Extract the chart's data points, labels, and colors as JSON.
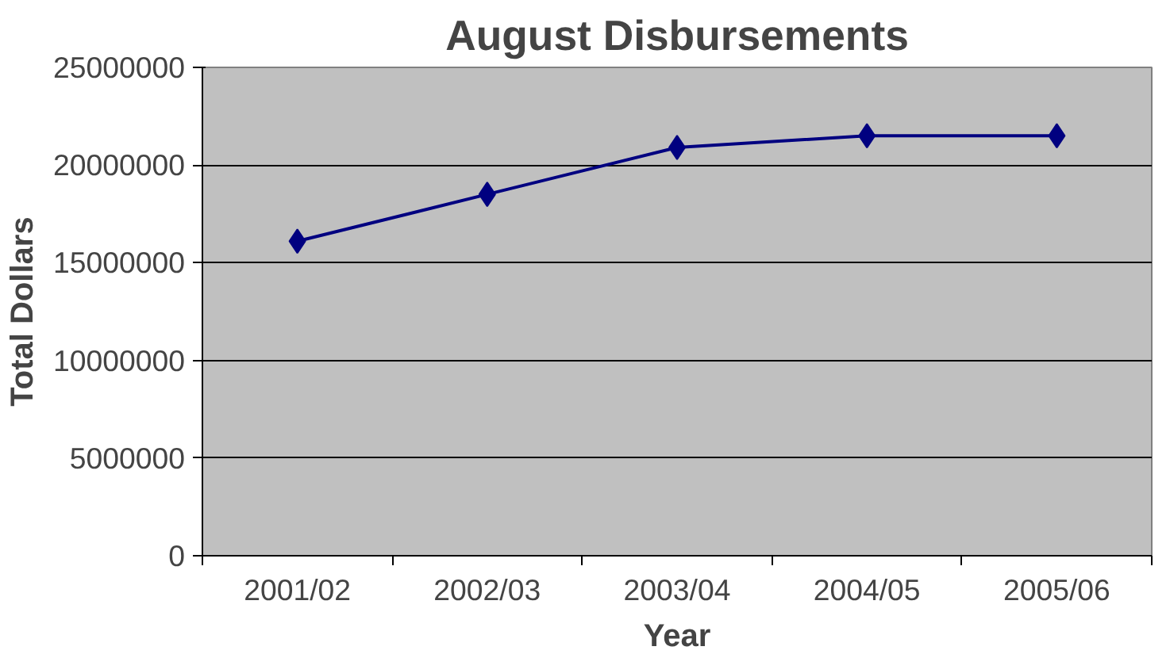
{
  "chart_data": {
    "type": "line",
    "title": "August Disbursements",
    "xlabel": "Year",
    "ylabel": "Total Dollars",
    "categories": [
      "2001/02",
      "2002/03",
      "2003/04",
      "2004/05",
      "2005/06"
    ],
    "series": [
      {
        "color": "#000080",
        "values": [
          16100000,
          18500000,
          20900000,
          21500000,
          21500000
        ]
      }
    ],
    "ylim": [
      0,
      25000000
    ],
    "yticks": [
      0,
      5000000,
      10000000,
      15000000,
      20000000,
      25000000
    ],
    "grid": "y",
    "marker": "diamond",
    "line_style": "solid"
  }
}
